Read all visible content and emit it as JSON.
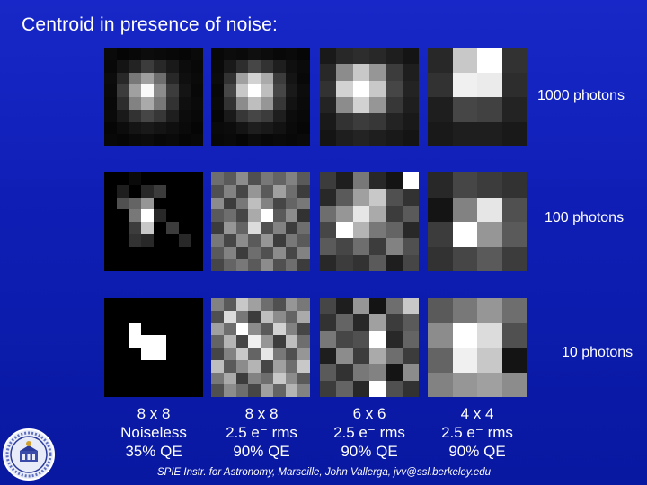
{
  "title": "Centroid in presence of noise:",
  "rows": [
    {
      "label": "1000 photons"
    },
    {
      "label": "100 photons"
    },
    {
      "label": "10 photons"
    }
  ],
  "columns": [
    {
      "line1": "8 x 8",
      "line2": "Noiseless",
      "line3": "35% QE"
    },
    {
      "line1": "8 x 8",
      "line2": "2.5 e⁻ rms",
      "line3": "90% QE"
    },
    {
      "line1": "6 x 6",
      "line2": "2.5 e⁻ rms",
      "line3": "90% QE"
    },
    {
      "line1": "4 x 4",
      "line2": "2.5 e⁻ rms",
      "line3": "90% QE"
    }
  ],
  "footer": "SPIE Instr. for Astronomy, Marseille, John Vallerga, jvv@ssl.berkeley.edu",
  "images": [
    [
      {
        "n": 8,
        "v": [
          10,
          5,
          8,
          12,
          10,
          8,
          6,
          10,
          8,
          20,
          35,
          60,
          40,
          25,
          12,
          8,
          12,
          40,
          120,
          160,
          110,
          40,
          15,
          10,
          10,
          60,
          160,
          250,
          140,
          60,
          20,
          8,
          8,
          45,
          130,
          170,
          120,
          50,
          15,
          10,
          10,
          25,
          50,
          70,
          55,
          30,
          12,
          8,
          6,
          12,
          20,
          25,
          20,
          15,
          10,
          5,
          8,
          6,
          10,
          12,
          8,
          10,
          6,
          8
        ]
      },
      {
        "n": 8,
        "v": [
          8,
          12,
          10,
          15,
          12,
          8,
          10,
          6,
          10,
          25,
          45,
          70,
          50,
          30,
          15,
          10,
          12,
          50,
          160,
          210,
          170,
          60,
          20,
          8,
          8,
          70,
          200,
          255,
          190,
          70,
          25,
          12,
          10,
          50,
          140,
          190,
          150,
          55,
          18,
          10,
          6,
          25,
          55,
          70,
          60,
          30,
          12,
          8,
          10,
          12,
          20,
          30,
          25,
          18,
          10,
          6,
          8,
          10,
          6,
          12,
          8,
          10,
          8,
          10
        ]
      },
      {
        "n": 6,
        "v": [
          25,
          40,
          45,
          40,
          30,
          20,
          40,
          140,
          200,
          150,
          60,
          30,
          50,
          210,
          255,
          200,
          70,
          35,
          35,
          140,
          210,
          150,
          55,
          30,
          25,
          50,
          60,
          55,
          35,
          25,
          20,
          30,
          35,
          30,
          25,
          20
        ]
      },
      {
        "n": 4,
        "v": [
          40,
          200,
          255,
          50,
          50,
          240,
          235,
          45,
          30,
          70,
          65,
          35,
          25,
          30,
          30,
          25
        ]
      }
    ],
    [
      {
        "n": 8,
        "v": [
          0,
          0,
          10,
          0,
          0,
          0,
          0,
          0,
          0,
          30,
          0,
          40,
          60,
          0,
          0,
          0,
          0,
          80,
          100,
          150,
          0,
          0,
          0,
          0,
          0,
          0,
          120,
          255,
          40,
          0,
          0,
          0,
          0,
          0,
          60,
          200,
          0,
          60,
          0,
          0,
          0,
          0,
          50,
          40,
          0,
          0,
          40,
          0,
          0,
          0,
          0,
          0,
          0,
          0,
          0,
          0,
          0,
          0,
          0,
          0,
          0,
          0,
          0,
          0
        ]
      },
      {
        "n": 8,
        "v": [
          110,
          90,
          140,
          80,
          120,
          100,
          130,
          90,
          80,
          130,
          70,
          150,
          90,
          160,
          110,
          60,
          140,
          60,
          120,
          190,
          130,
          70,
          100,
          120,
          90,
          110,
          70,
          170,
          255,
          90,
          140,
          50,
          60,
          150,
          100,
          220,
          80,
          130,
          60,
          110,
          120,
          70,
          140,
          90,
          150,
          60,
          120,
          90,
          90,
          130,
          60,
          110,
          80,
          140,
          70,
          130,
          70,
          100,
          120,
          90,
          140,
          80,
          110,
          60
        ]
      },
      {
        "n": 6,
        "v": [
          60,
          30,
          120,
          40,
          20,
          255,
          40,
          90,
          160,
          200,
          80,
          50,
          110,
          150,
          230,
          170,
          60,
          90,
          70,
          255,
          180,
          120,
          100,
          40,
          90,
          70,
          110,
          60,
          130,
          80,
          40,
          60,
          50,
          90,
          30,
          70
        ]
      },
      {
        "n": 4,
        "v": [
          40,
          70,
          60,
          50,
          20,
          130,
          230,
          80,
          60,
          255,
          150,
          90,
          50,
          70,
          90,
          60
        ]
      }
    ],
    [
      {
        "n": 8,
        "v": [
          0,
          0,
          0,
          0,
          0,
          0,
          0,
          0,
          0,
          0,
          0,
          0,
          0,
          0,
          0,
          0,
          0,
          0,
          255,
          0,
          0,
          0,
          0,
          0,
          0,
          0,
          255,
          255,
          255,
          0,
          0,
          0,
          0,
          0,
          0,
          255,
          255,
          0,
          0,
          0,
          0,
          0,
          0,
          0,
          0,
          0,
          0,
          0,
          0,
          0,
          0,
          0,
          0,
          0,
          0,
          0,
          0,
          0,
          0,
          0,
          0,
          0,
          0,
          0
        ]
      },
      {
        "n": 8,
        "v": [
          130,
          90,
          200,
          160,
          110,
          80,
          150,
          120,
          80,
          220,
          120,
          60,
          190,
          140,
          100,
          170,
          160,
          110,
          255,
          140,
          90,
          210,
          130,
          70,
          100,
          180,
          70,
          240,
          150,
          60,
          190,
          110,
          70,
          130,
          200,
          100,
          230,
          120,
          80,
          150,
          190,
          90,
          140,
          180,
          70,
          160,
          110,
          200,
          120,
          170,
          60,
          130,
          110,
          200,
          140,
          90,
          80,
          140,
          110,
          70,
          160,
          100,
          180,
          130
        ]
      },
      {
        "n": 6,
        "v": [
          70,
          30,
          150,
          20,
          110,
          200,
          50,
          100,
          40,
          160,
          60,
          90,
          120,
          70,
          80,
          255,
          40,
          100,
          30,
          140,
          60,
          170,
          110,
          60,
          90,
          50,
          120,
          130,
          20,
          140,
          60,
          100,
          40,
          255,
          80,
          50
        ]
      },
      {
        "n": 4,
        "v": [
          90,
          120,
          150,
          110,
          140,
          255,
          220,
          80,
          100,
          240,
          200,
          20,
          130,
          150,
          160,
          140
        ]
      }
    ]
  ]
}
